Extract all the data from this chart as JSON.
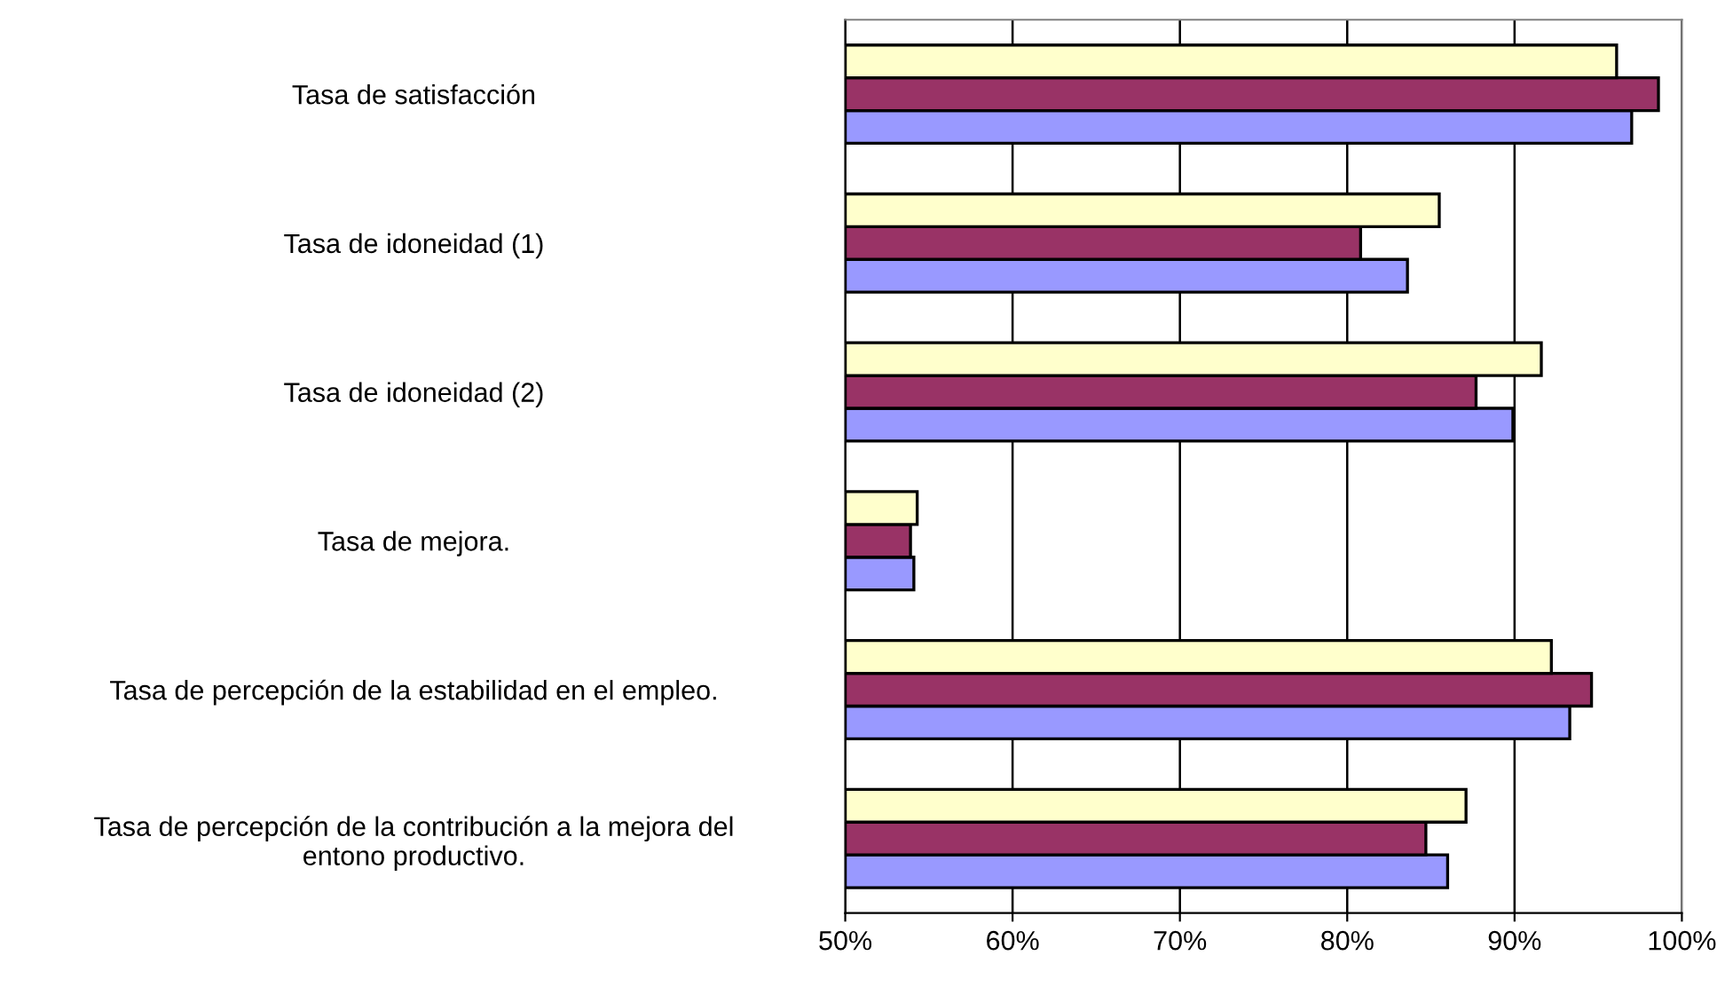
{
  "chart_data": {
    "type": "bar",
    "orientation": "horizontal",
    "categories": [
      "Tasa de satisfacción",
      "Tasa de idoneidad (1)",
      "Tasa de idoneidad (2)",
      "Tasa de mejora.",
      "Tasa de percepción de la estabilidad en el empleo.",
      "Tasa de percepción de la contribución a la mejora del\nentono productivo."
    ],
    "series": [
      {
        "color": "#9999ff",
        "values": [
          97.0,
          83.6,
          89.9,
          54.1,
          93.3,
          86.0
        ]
      },
      {
        "color": "#993366",
        "values": [
          98.6,
          80.8,
          87.7,
          53.9,
          94.6,
          84.7
        ]
      },
      {
        "color": "#ffffcc",
        "values": [
          96.1,
          85.5,
          91.6,
          54.3,
          92.2,
          87.1
        ]
      }
    ],
    "xlim": [
      50,
      100
    ],
    "xticks": [
      {
        "value": 50,
        "label": "50%"
      },
      {
        "value": 60,
        "label": "60%"
      },
      {
        "value": 70,
        "label": "70%"
      },
      {
        "value": 80,
        "label": "80%"
      },
      {
        "value": 90,
        "label": "90%"
      },
      {
        "value": 100,
        "label": "100%"
      }
    ],
    "grid": "x",
    "legend": false
  }
}
